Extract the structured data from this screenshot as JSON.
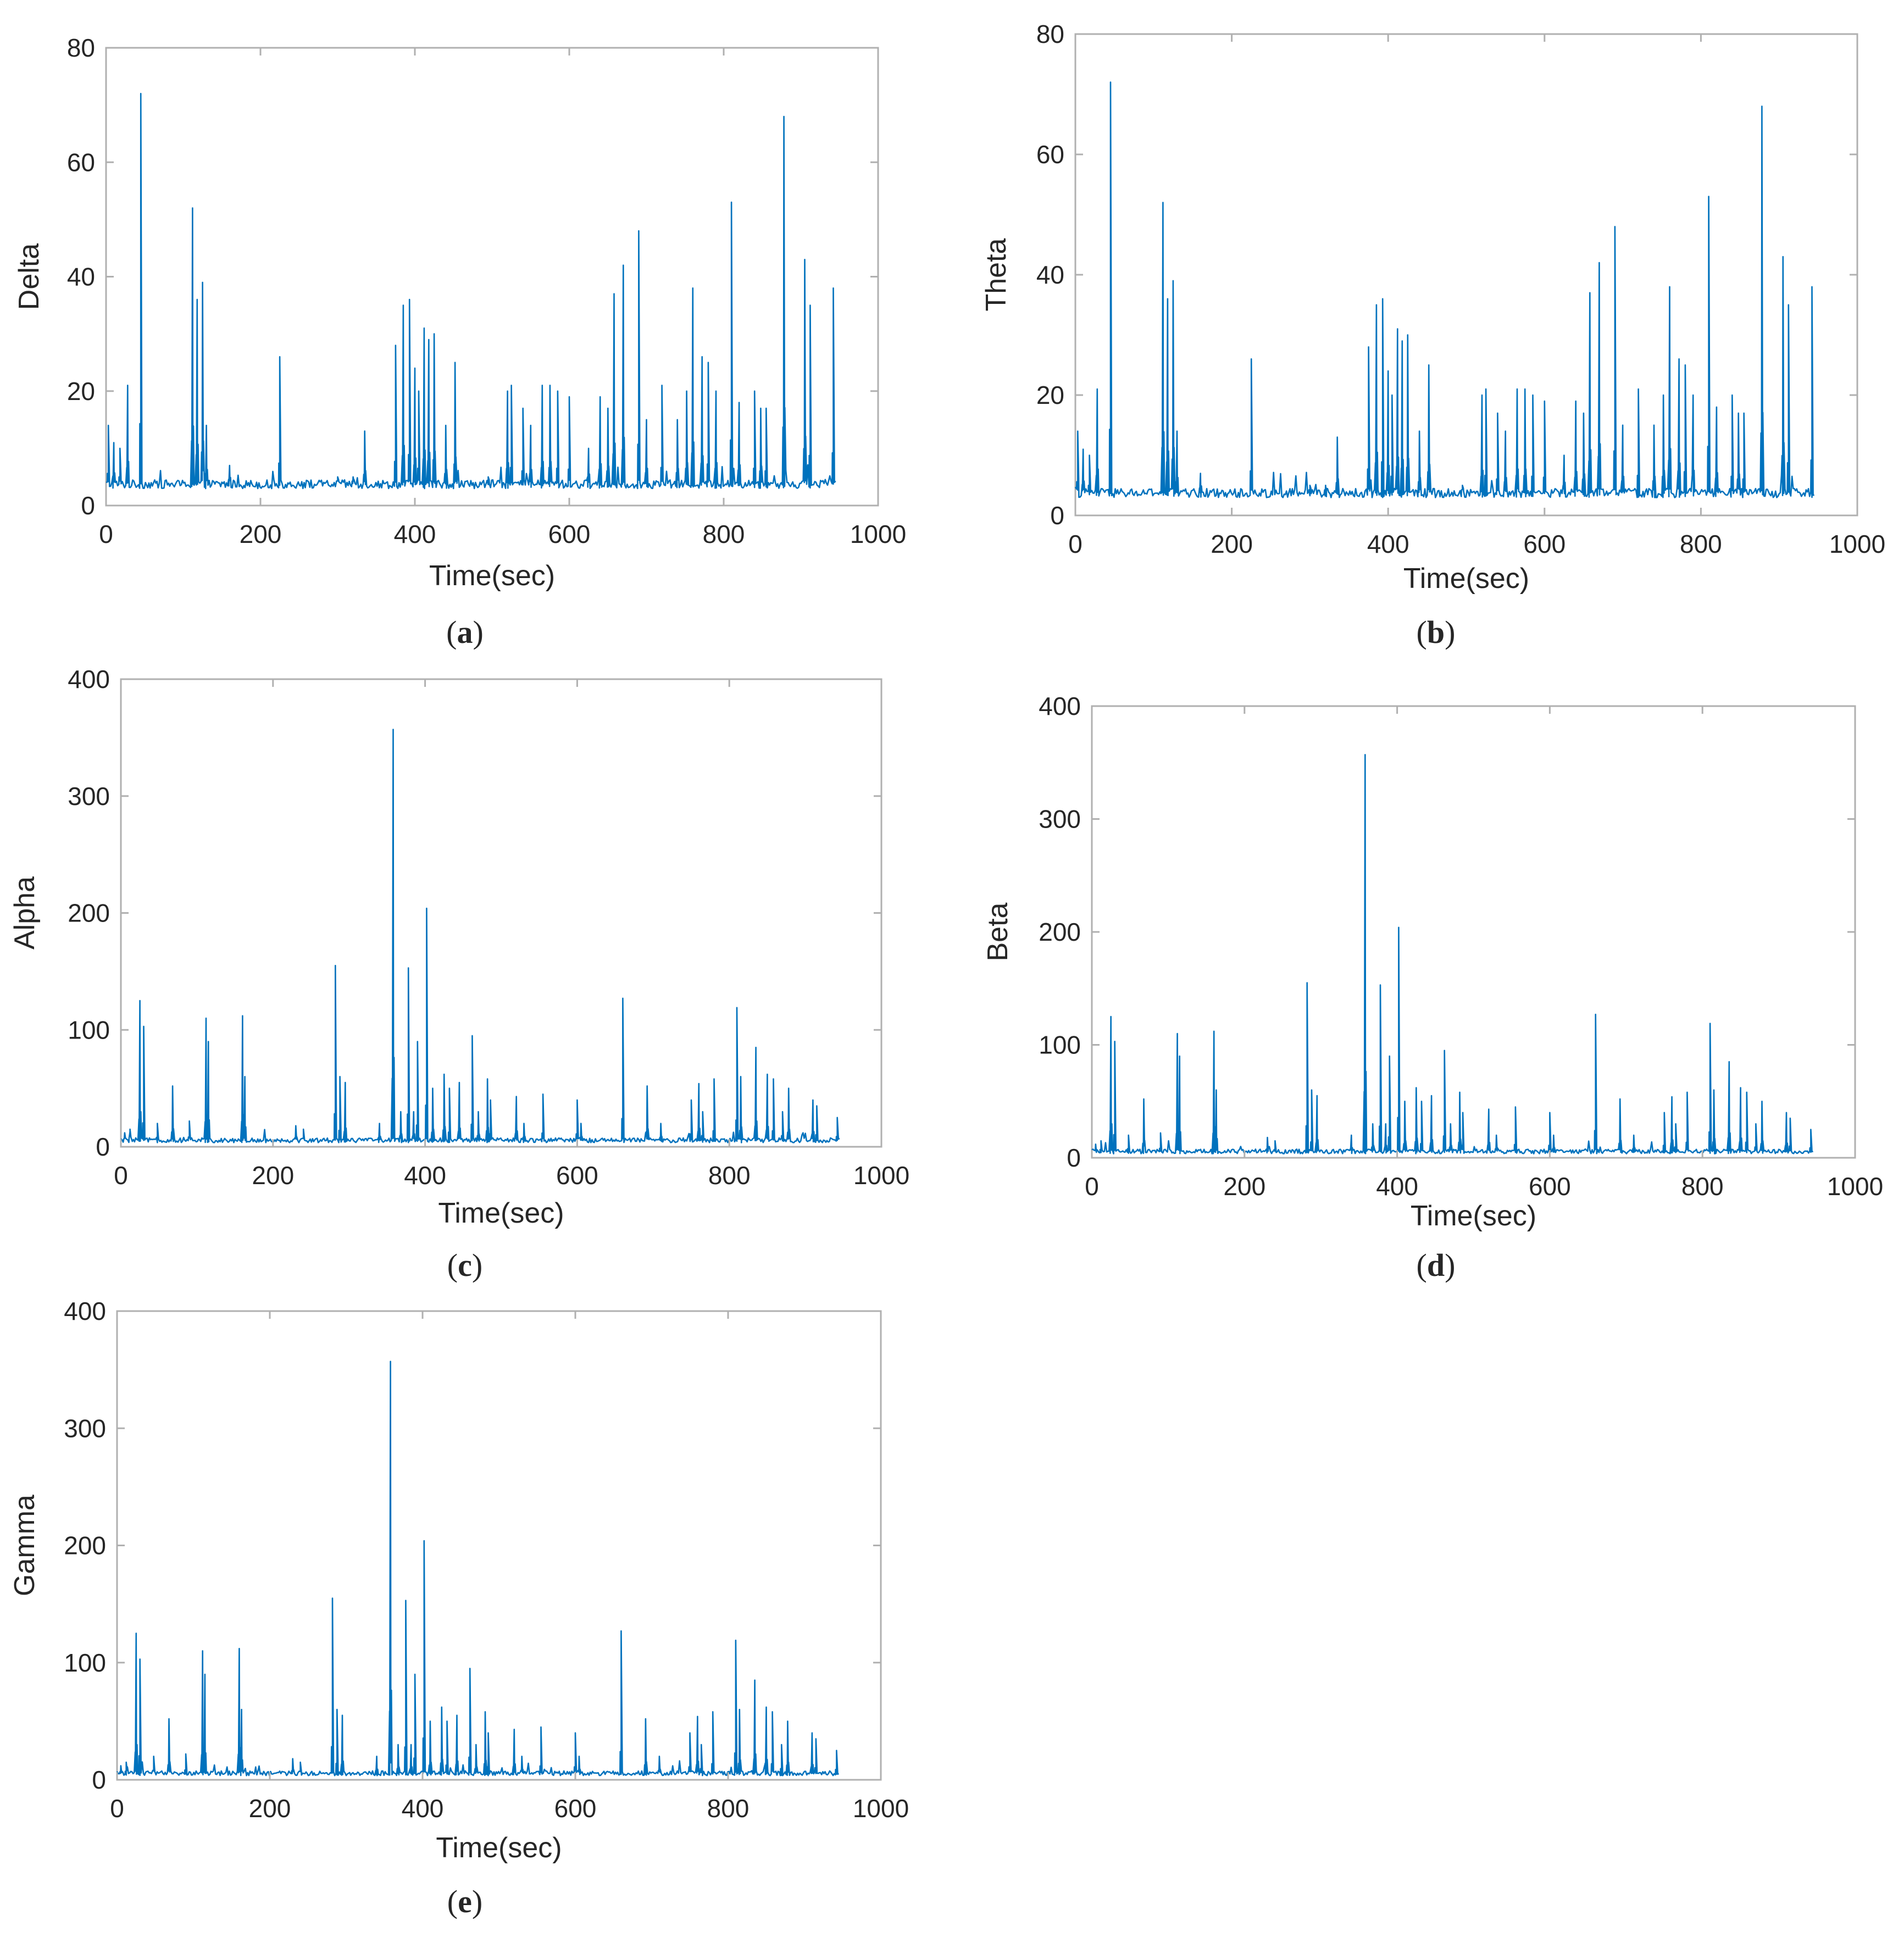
{
  "figure": {
    "line_color": "#0072BD",
    "axis_color": "#262626",
    "box_color": "#b0b0b0"
  },
  "chart_data": [
    {
      "id": "a",
      "type": "line",
      "caption": "(a)",
      "xlabel": "Time(sec)",
      "ylabel": "Delta",
      "xlim": [
        0,
        1000
      ],
      "ylim": [
        0,
        80
      ],
      "xticks": [
        0,
        200,
        400,
        600,
        800,
        1000
      ],
      "yticks": [
        0,
        20,
        40,
        60,
        80
      ],
      "baseline": 3.5,
      "noise": 1.5,
      "end": 945,
      "spikes": [
        [
          3,
          14
        ],
        [
          10,
          11
        ],
        [
          18,
          10
        ],
        [
          28,
          21
        ],
        [
          45,
          72
        ],
        [
          112,
          52
        ],
        [
          118,
          36
        ],
        [
          125,
          39
        ],
        [
          130,
          14
        ],
        [
          160,
          7
        ],
        [
          225,
          26
        ],
        [
          300,
          5
        ],
        [
          320,
          5
        ],
        [
          335,
          13
        ],
        [
          375,
          28
        ],
        [
          385,
          35
        ],
        [
          393,
          36
        ],
        [
          400,
          24
        ],
        [
          405,
          20
        ],
        [
          412,
          31
        ],
        [
          418,
          29
        ],
        [
          425,
          30
        ],
        [
          440,
          14
        ],
        [
          452,
          25
        ],
        [
          495,
          5
        ],
        [
          520,
          20
        ],
        [
          525,
          21
        ],
        [
          540,
          17
        ],
        [
          550,
          14
        ],
        [
          565,
          21
        ],
        [
          575,
          21
        ],
        [
          585,
          20
        ],
        [
          600,
          19
        ],
        [
          625,
          10
        ],
        [
          640,
          19
        ],
        [
          650,
          17
        ],
        [
          658,
          37
        ],
        [
          670,
          42
        ],
        [
          690,
          48
        ],
        [
          700,
          15
        ],
        [
          720,
          21
        ],
        [
          740,
          15
        ],
        [
          752,
          20
        ],
        [
          760,
          38
        ],
        [
          772,
          26
        ],
        [
          780,
          25
        ],
        [
          790,
          20
        ],
        [
          810,
          53
        ],
        [
          820,
          18
        ],
        [
          840,
          20
        ],
        [
          848,
          17
        ],
        [
          855,
          17
        ],
        [
          878,
          68
        ],
        [
          905,
          43
        ],
        [
          912,
          35
        ],
        [
          942,
          38
        ]
      ]
    },
    {
      "id": "b",
      "type": "line",
      "caption": "(b)",
      "xlabel": "Time(sec)",
      "ylabel": "Theta",
      "xlim": [
        0,
        1000
      ],
      "ylim": [
        0,
        80
      ],
      "xticks": [
        0,
        200,
        400,
        600,
        800,
        1000
      ],
      "yticks": [
        0,
        20,
        40,
        60,
        80
      ],
      "baseline": 3.5,
      "noise": 1.5,
      "end": 945,
      "spikes": [
        [
          3,
          14
        ],
        [
          10,
          11
        ],
        [
          18,
          10
        ],
        [
          28,
          21
        ],
        [
          45,
          72
        ],
        [
          112,
          52
        ],
        [
          118,
          36
        ],
        [
          125,
          39
        ],
        [
          130,
          14
        ],
        [
          160,
          7
        ],
        [
          225,
          26
        ],
        [
          300,
          5
        ],
        [
          320,
          5
        ],
        [
          335,
          13
        ],
        [
          375,
          28
        ],
        [
          385,
          35
        ],
        [
          393,
          36
        ],
        [
          400,
          24
        ],
        [
          405,
          20
        ],
        [
          412,
          31
        ],
        [
          418,
          29
        ],
        [
          425,
          30
        ],
        [
          440,
          14
        ],
        [
          452,
          25
        ],
        [
          495,
          5
        ],
        [
          520,
          20
        ],
        [
          525,
          21
        ],
        [
          540,
          17
        ],
        [
          550,
          14
        ],
        [
          565,
          21
        ],
        [
          575,
          21
        ],
        [
          585,
          20
        ],
        [
          600,
          19
        ],
        [
          625,
          10
        ],
        [
          640,
          19
        ],
        [
          650,
          17
        ],
        [
          658,
          37
        ],
        [
          670,
          42
        ],
        [
          690,
          48
        ],
        [
          700,
          15
        ],
        [
          720,
          21
        ],
        [
          740,
          15
        ],
        [
          752,
          20
        ],
        [
          760,
          38
        ],
        [
          772,
          26
        ],
        [
          780,
          25
        ],
        [
          790,
          20
        ],
        [
          810,
          53
        ],
        [
          820,
          18
        ],
        [
          840,
          20
        ],
        [
          848,
          17
        ],
        [
          855,
          17
        ],
        [
          878,
          68
        ],
        [
          905,
          43
        ],
        [
          912,
          35
        ],
        [
          942,
          38
        ]
      ]
    },
    {
      "id": "c",
      "type": "line",
      "caption": "(c)",
      "xlabel": "Time(sec)",
      "ylabel": "Alpha",
      "xlim": [
        0,
        1000
      ],
      "ylim": [
        0,
        400
      ],
      "xticks": [
        0,
        200,
        400,
        600,
        800,
        1000
      ],
      "yticks": [
        0,
        100,
        200,
        300,
        400
      ],
      "baseline": 5,
      "noise": 4,
      "end": 945,
      "spikes": [
        [
          5,
          12
        ],
        [
          12,
          15
        ],
        [
          25,
          125
        ],
        [
          30,
          103
        ],
        [
          48,
          20
        ],
        [
          68,
          52
        ],
        [
          90,
          22
        ],
        [
          112,
          110
        ],
        [
          115,
          90
        ],
        [
          160,
          112
        ],
        [
          163,
          60
        ],
        [
          230,
          18
        ],
        [
          240,
          15
        ],
        [
          282,
          155
        ],
        [
          288,
          60
        ],
        [
          295,
          55
        ],
        [
          340,
          20
        ],
        [
          358,
          357
        ],
        [
          368,
          30
        ],
        [
          378,
          153
        ],
        [
          385,
          30
        ],
        [
          390,
          90
        ],
        [
          402,
          204
        ],
        [
          410,
          50
        ],
        [
          425,
          62
        ],
        [
          432,
          50
        ],
        [
          445,
          55
        ],
        [
          462,
          95
        ],
        [
          470,
          30
        ],
        [
          482,
          58
        ],
        [
          486,
          40
        ],
        [
          520,
          43
        ],
        [
          530,
          20
        ],
        [
          555,
          45
        ],
        [
          600,
          40
        ],
        [
          605,
          20
        ],
        [
          660,
          127
        ],
        [
          692,
          52
        ],
        [
          710,
          20
        ],
        [
          750,
          40
        ],
        [
          760,
          54
        ],
        [
          765,
          30
        ],
        [
          780,
          58
        ],
        [
          810,
          119
        ],
        [
          815,
          60
        ],
        [
          835,
          85
        ],
        [
          850,
          62
        ],
        [
          858,
          58
        ],
        [
          870,
          30
        ],
        [
          878,
          50
        ],
        [
          910,
          40
        ],
        [
          915,
          35
        ],
        [
          942,
          25
        ]
      ]
    },
    {
      "id": "d",
      "type": "line",
      "caption": "(d)",
      "xlabel": "Time(sec)",
      "ylabel": "Beta",
      "xlim": [
        0,
        1000
      ],
      "ylim": [
        0,
        400
      ],
      "xticks": [
        0,
        200,
        400,
        600,
        800,
        1000
      ],
      "yticks": [
        0,
        100,
        200,
        300,
        400
      ],
      "baseline": 5,
      "noise": 4,
      "end": 945,
      "spikes": [
        [
          5,
          12
        ],
        [
          12,
          15
        ],
        [
          25,
          125
        ],
        [
          30,
          103
        ],
        [
          48,
          20
        ],
        [
          68,
          52
        ],
        [
          90,
          22
        ],
        [
          112,
          110
        ],
        [
          115,
          90
        ],
        [
          160,
          112
        ],
        [
          163,
          60
        ],
        [
          230,
          18
        ],
        [
          240,
          15
        ],
        [
          282,
          155
        ],
        [
          288,
          60
        ],
        [
          295,
          55
        ],
        [
          340,
          20
        ],
        [
          358,
          357
        ],
        [
          368,
          30
        ],
        [
          378,
          153
        ],
        [
          385,
          30
        ],
        [
          390,
          90
        ],
        [
          402,
          204
        ],
        [
          410,
          50
        ],
        [
          425,
          62
        ],
        [
          432,
          50
        ],
        [
          445,
          55
        ],
        [
          462,
          95
        ],
        [
          470,
          30
        ],
        [
          482,
          58
        ],
        [
          486,
          40
        ],
        [
          520,
          43
        ],
        [
          530,
          20
        ],
        [
          555,
          45
        ],
        [
          600,
          40
        ],
        [
          605,
          20
        ],
        [
          660,
          127
        ],
        [
          692,
          52
        ],
        [
          710,
          20
        ],
        [
          750,
          40
        ],
        [
          760,
          54
        ],
        [
          765,
          30
        ],
        [
          780,
          58
        ],
        [
          810,
          119
        ],
        [
          815,
          60
        ],
        [
          835,
          85
        ],
        [
          850,
          62
        ],
        [
          858,
          58
        ],
        [
          870,
          30
        ],
        [
          878,
          50
        ],
        [
          910,
          40
        ],
        [
          915,
          35
        ],
        [
          942,
          25
        ]
      ]
    },
    {
      "id": "e",
      "type": "line",
      "caption": "(e)",
      "xlabel": "Time(sec)",
      "ylabel": "Gamma",
      "xlim": [
        0,
        1000
      ],
      "ylim": [
        0,
        400
      ],
      "xticks": [
        0,
        200,
        400,
        600,
        800,
        1000
      ],
      "yticks": [
        0,
        100,
        200,
        300,
        400
      ],
      "baseline": 5,
      "noise": 4,
      "end": 945,
      "spikes": [
        [
          5,
          12
        ],
        [
          12,
          15
        ],
        [
          25,
          125
        ],
        [
          30,
          103
        ],
        [
          48,
          20
        ],
        [
          68,
          52
        ],
        [
          90,
          22
        ],
        [
          112,
          110
        ],
        [
          115,
          90
        ],
        [
          160,
          112
        ],
        [
          163,
          60
        ],
        [
          230,
          18
        ],
        [
          240,
          15
        ],
        [
          282,
          155
        ],
        [
          288,
          60
        ],
        [
          295,
          55
        ],
        [
          340,
          20
        ],
        [
          358,
          357
        ],
        [
          368,
          30
        ],
        [
          378,
          153
        ],
        [
          385,
          30
        ],
        [
          390,
          90
        ],
        [
          402,
          204
        ],
        [
          410,
          50
        ],
        [
          425,
          62
        ],
        [
          432,
          50
        ],
        [
          445,
          55
        ],
        [
          462,
          95
        ],
        [
          470,
          30
        ],
        [
          482,
          58
        ],
        [
          486,
          40
        ],
        [
          520,
          43
        ],
        [
          530,
          20
        ],
        [
          555,
          45
        ],
        [
          600,
          40
        ],
        [
          605,
          20
        ],
        [
          660,
          127
        ],
        [
          692,
          52
        ],
        [
          710,
          20
        ],
        [
          750,
          40
        ],
        [
          760,
          54
        ],
        [
          765,
          30
        ],
        [
          780,
          58
        ],
        [
          810,
          119
        ],
        [
          815,
          60
        ],
        [
          835,
          85
        ],
        [
          850,
          62
        ],
        [
          858,
          58
        ],
        [
          870,
          30
        ],
        [
          878,
          50
        ],
        [
          910,
          40
        ],
        [
          915,
          35
        ],
        [
          942,
          25
        ]
      ]
    }
  ]
}
